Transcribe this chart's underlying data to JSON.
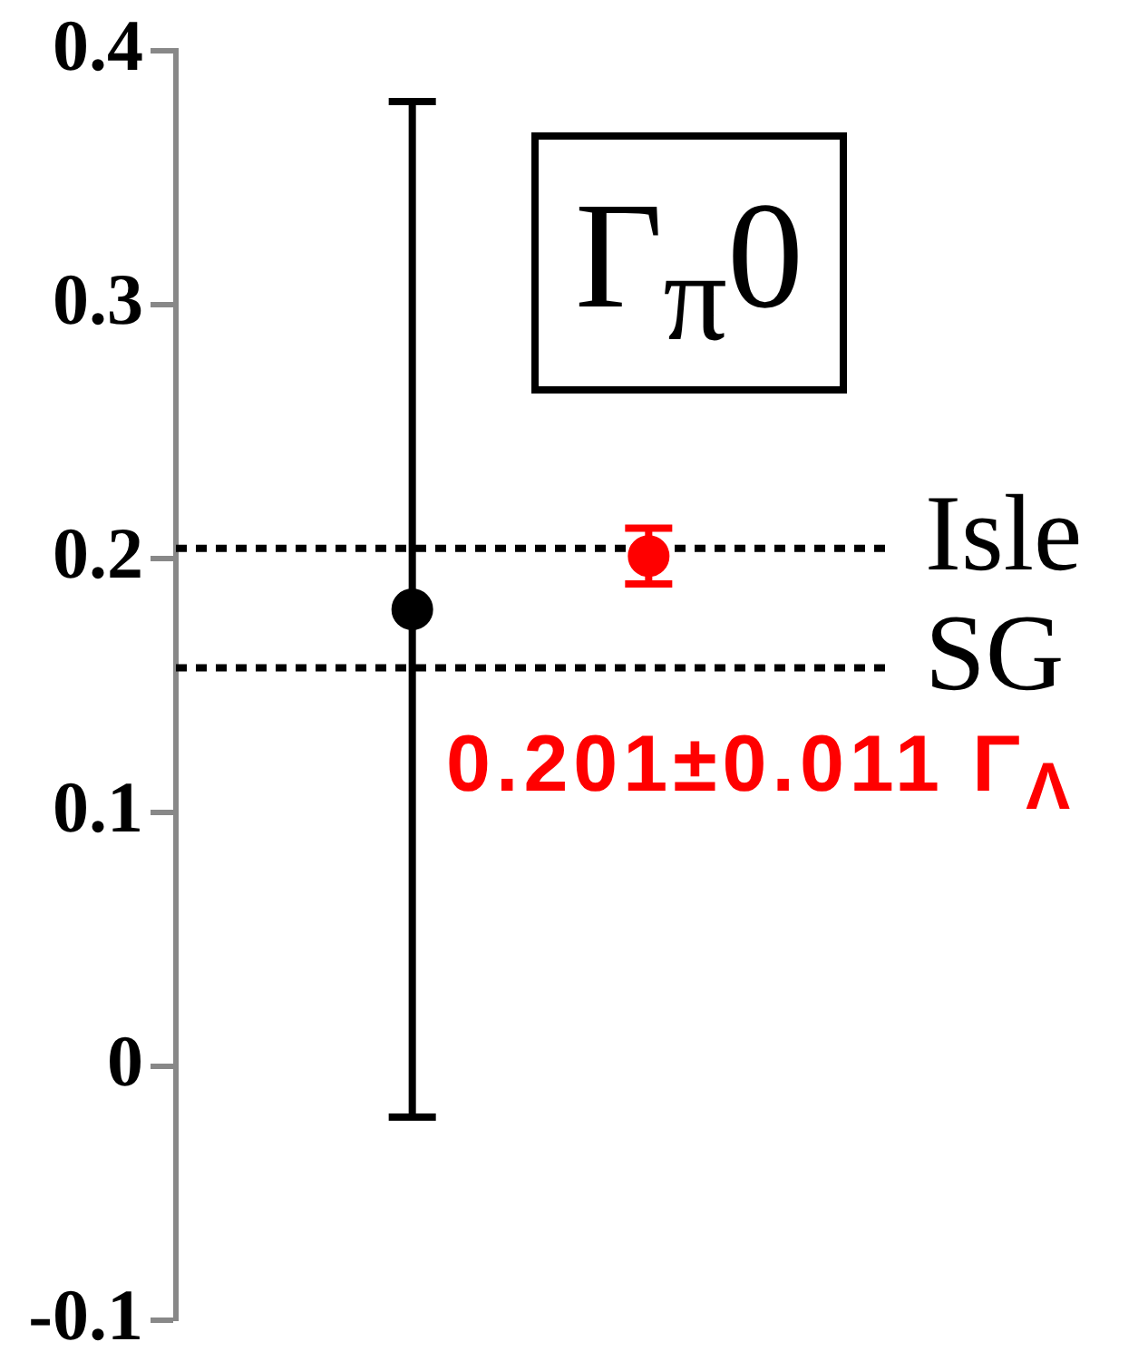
{
  "chart_data": {
    "type": "scatter",
    "title": "Γ$_{π}$0",
    "categories": [
      null,
      null
    ],
    "values": [
      0.18,
      0.201
    ],
    "errors": [
      0.2,
      0.011
    ],
    "colors": [
      "#000000",
      "#ff0000"
    ],
    "ylim": [
      -0.1,
      0.4
    ],
    "yticks": [
      -0.1,
      0,
      0.1,
      0.2,
      0.3,
      0.4
    ],
    "tick_labels": "y",
    "marker": "circle",
    "grid": false,
    "ref_lines": [
      {
        "axis": "y",
        "value": 0.204,
        "label": "Isle",
        "line_style": "dotted",
        "color": "#000000"
      },
      {
        "axis": "y",
        "value": 0.157,
        "label": "SG",
        "line_style": "dotted",
        "color": "#000000"
      }
    ],
    "annotations": [
      "0.201±0.011 Γ$_{Λ}$"
    ]
  }
}
